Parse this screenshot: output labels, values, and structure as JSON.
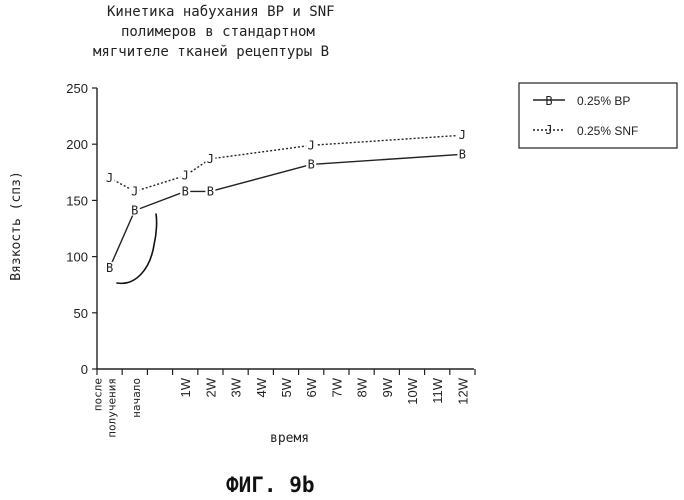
{
  "chart_data": {
    "type": "line",
    "title_lines": [
      "Кинетика набухания BP и SNF",
      "полимеров в стандартном",
      "мягчителе тканей рецептуры B"
    ],
    "ylabel": "Вязкость (спз)",
    "xlabel": "время",
    "ylim": [
      0,
      250
    ],
    "yticks": [
      0,
      50,
      100,
      150,
      200,
      250
    ],
    "categories": [
      "после получения",
      "начало",
      "",
      "1W",
      "2W",
      "3W",
      "4W",
      "5W",
      "6W",
      "7W",
      "8W",
      "9W",
      "10W",
      "11W",
      "12W"
    ],
    "grid": false,
    "legend_position": "right",
    "series": [
      {
        "name": "0.25% BP",
        "marker": "B",
        "style": "solid",
        "points": [
          {
            "x": "после получения",
            "y": 90
          },
          {
            "x": "начало",
            "y": 141
          },
          {
            "x": "1W",
            "y": 158
          },
          {
            "x": "2W",
            "y": 158
          },
          {
            "x": "6W",
            "y": 182
          },
          {
            "x": "12W",
            "y": 191
          }
        ]
      },
      {
        "name": "0.25% SNF",
        "marker": "J",
        "style": "dotted",
        "points": [
          {
            "x": "после получения",
            "y": 170
          },
          {
            "x": "начало",
            "y": 158
          },
          {
            "x": "1W",
            "y": 172
          },
          {
            "x": "2W",
            "y": 187
          },
          {
            "x": "6W",
            "y": 199
          },
          {
            "x": "12W",
            "y": 208
          }
        ]
      }
    ]
  },
  "caption": "ФИГ. 9b"
}
